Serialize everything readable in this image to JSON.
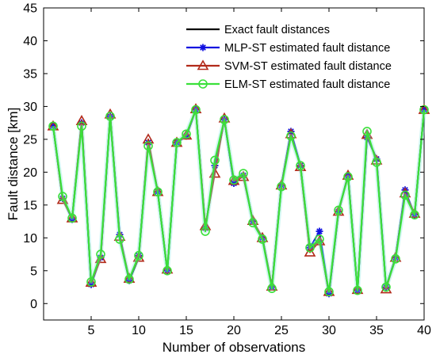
{
  "chart_data": {
    "type": "line",
    "title": "",
    "xlabel": "Number of observations",
    "ylabel": "Fault distance [km]",
    "xlim": [
      0,
      40
    ],
    "ylim": [
      -2.5,
      45
    ],
    "xticks": [
      5,
      10,
      15,
      20,
      25,
      30,
      35,
      40
    ],
    "yticks": [
      0,
      5,
      10,
      15,
      20,
      25,
      30,
      35,
      40,
      45
    ],
    "grid": false,
    "legend_position": "top-right",
    "x": [
      1,
      2,
      3,
      4,
      5,
      6,
      7,
      8,
      9,
      10,
      11,
      12,
      13,
      14,
      15,
      16,
      17,
      18,
      19,
      20,
      21,
      22,
      23,
      24,
      25,
      26,
      27,
      28,
      29,
      30,
      31,
      32,
      33,
      34,
      35,
      36,
      37,
      38,
      39,
      40
    ],
    "series": [
      {
        "name": "Exact fault distances",
        "color": "#000000",
        "marker": "none",
        "values": [
          27,
          16,
          13,
          27.5,
          3,
          7,
          28.5,
          10,
          3.5,
          7,
          24.5,
          17,
          5,
          24.5,
          25.5,
          29.5,
          11.5,
          20.5,
          28,
          18.5,
          19.5,
          12.5,
          10,
          2.5,
          18,
          26,
          21,
          8,
          10,
          1.5,
          14,
          19.5,
          2,
          25.5,
          22,
          2.5,
          7,
          17,
          13.5,
          29.5
        ]
      },
      {
        "name": "MLP-ST estimated fault distance",
        "color": "#1010e0",
        "marker": "asterisk",
        "values": [
          27,
          16,
          12.8,
          27.5,
          2.9,
          7,
          28.5,
          10.5,
          3.5,
          7.3,
          24.5,
          17,
          5,
          24.5,
          25.5,
          29.5,
          11.5,
          21,
          28,
          18.3,
          19.5,
          12.5,
          10,
          2.5,
          18,
          26.2,
          21,
          8.5,
          11,
          1.5,
          14,
          19.5,
          2,
          25.3,
          22,
          2.5,
          7,
          17.3,
          13.5,
          29.5
        ]
      },
      {
        "name": "SVM-ST estimated fault distance",
        "color": "#b22a1a",
        "marker": "triangle",
        "values": [
          27,
          15.8,
          13,
          27.8,
          3.2,
          6.8,
          28.8,
          10.2,
          3.8,
          7,
          25,
          17,
          5.2,
          24.5,
          25.6,
          29.6,
          11.8,
          19.8,
          28.2,
          18.7,
          19.3,
          12.6,
          10,
          2.6,
          18,
          25.8,
          20.8,
          7.8,
          9.5,
          1.8,
          14,
          19.5,
          2.1,
          25.7,
          21.8,
          2.2,
          7,
          16.8,
          13.7,
          29.5
        ]
      },
      {
        "name": "ELM-ST estimated fault distance",
        "color": "#3ae03a",
        "marker": "circle",
        "values": [
          27,
          16.3,
          13,
          27,
          3.3,
          7.5,
          28.5,
          9.8,
          3.7,
          7.3,
          24,
          17,
          5,
          24.5,
          25.8,
          29.5,
          11,
          21.8,
          28,
          18.8,
          19.8,
          12.3,
          9.8,
          2.3,
          17.8,
          25.5,
          21,
          8.5,
          9.8,
          1.8,
          14.2,
          19.3,
          2,
          26.2,
          21.5,
          2.5,
          6.8,
          16.5,
          13.5,
          29.5
        ]
      }
    ]
  }
}
